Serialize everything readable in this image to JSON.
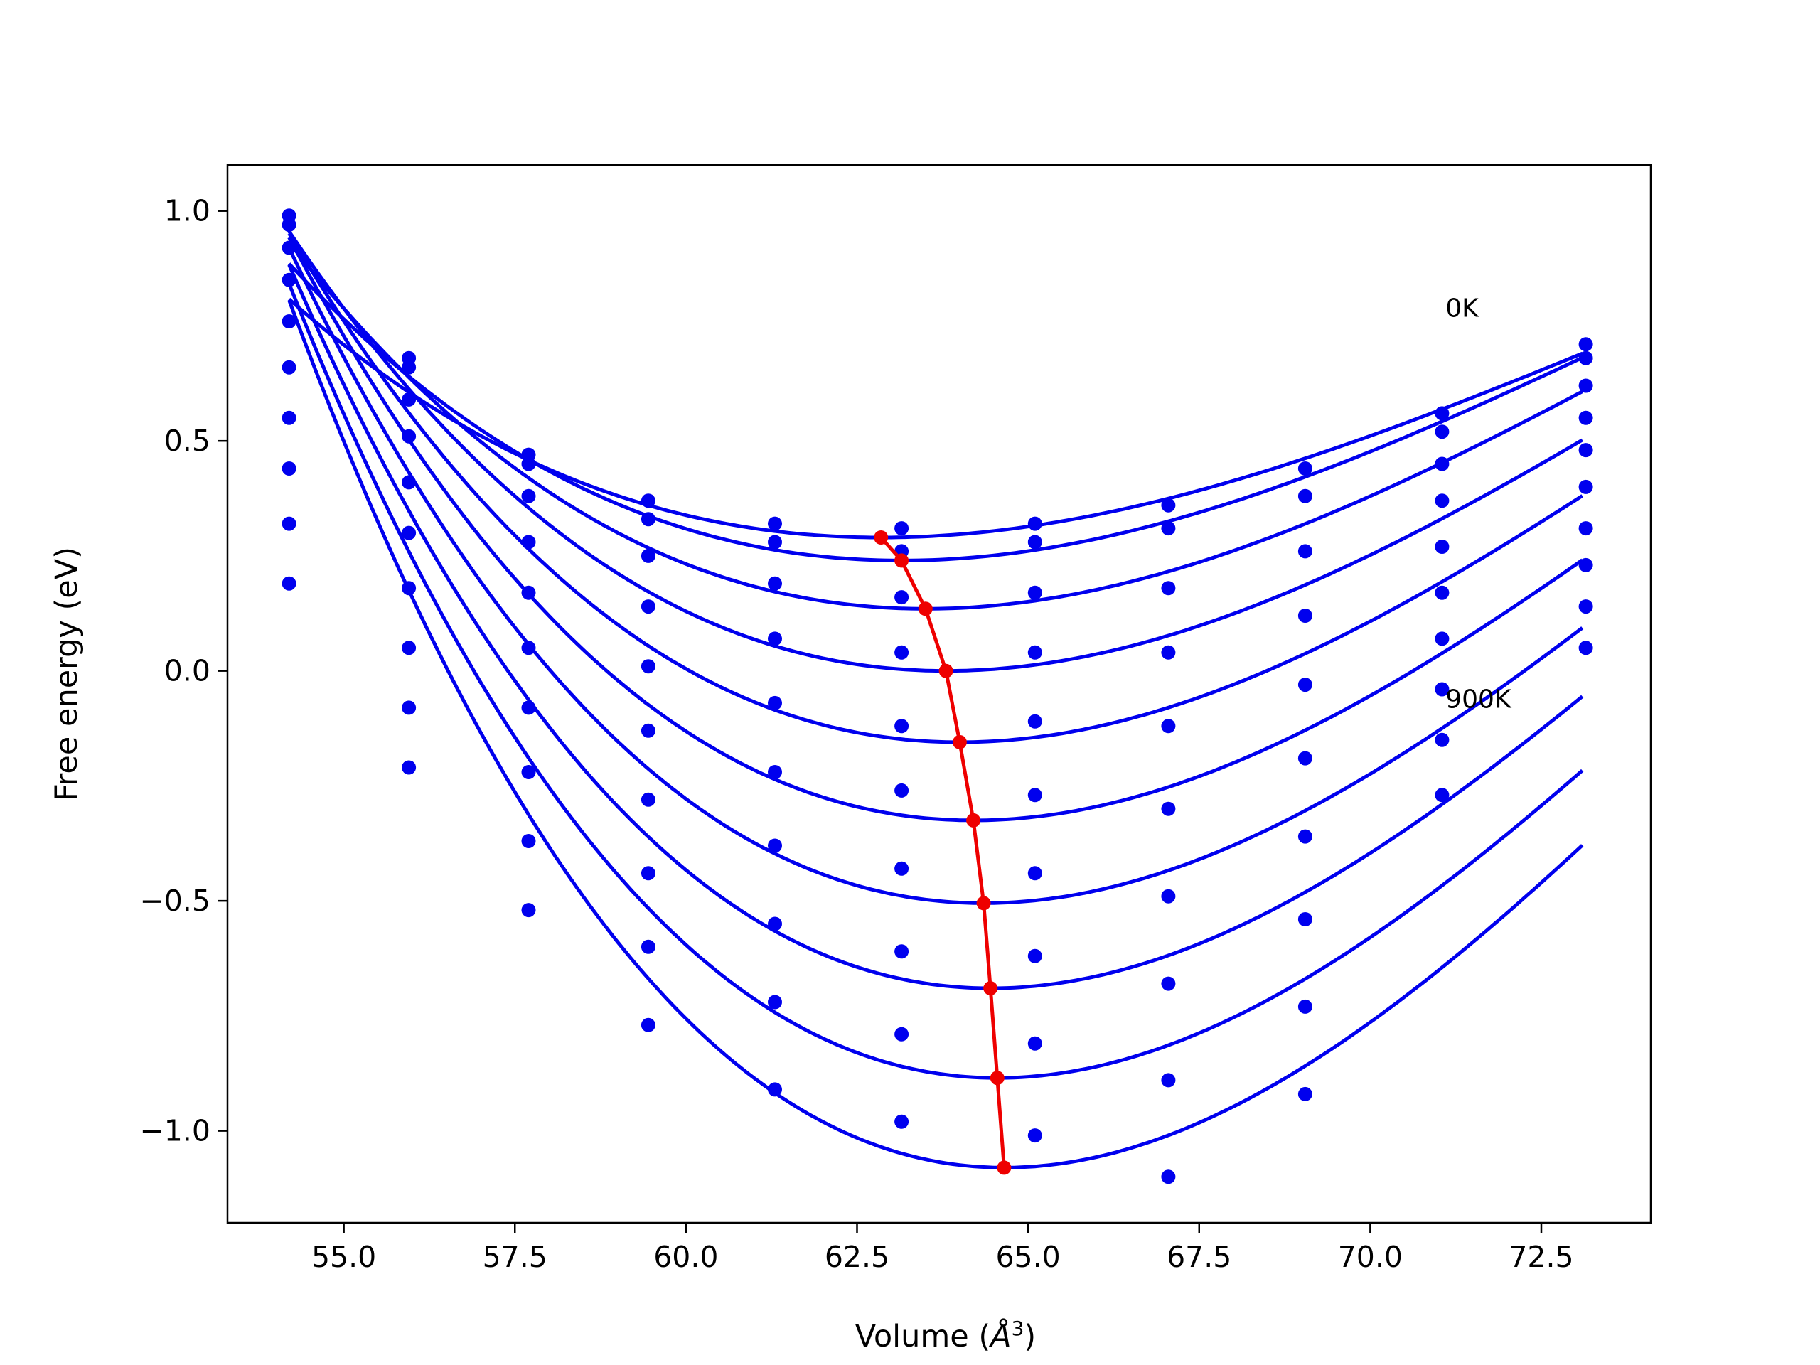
{
  "chart_data": {
    "type": "line",
    "title": "",
    "xlabel": "Volume (",
    "xlabel_symbol": "Å",
    "xlabel_exponent": "3",
    "xlabel_close": ")",
    "ylabel": "Free energy (eV)",
    "xlim": [
      53.3,
      74.1
    ],
    "ylim": [
      -1.2,
      1.1
    ],
    "grid": false,
    "legend": "none",
    "x_ticks": [
      55.0,
      57.5,
      60.0,
      62.5,
      65.0,
      67.5,
      70.0,
      72.5
    ],
    "x_tick_labels": [
      "55.0",
      "57.5",
      "60.0",
      "62.5",
      "65.0",
      "67.5",
      "70.0",
      "72.5"
    ],
    "y_ticks": [
      1.0,
      0.5,
      0.0,
      -0.5,
      -1.0
    ],
    "y_tick_labels": [
      "1.0",
      "0.5",
      "0.0",
      "−0.5",
      "−1.0"
    ],
    "colors": {
      "curves": "#0000ee",
      "minima": "#ee0000",
      "frame": "#000000"
    },
    "annotations": [
      {
        "text": "0K",
        "x": 71.1,
        "y": 0.77
      },
      {
        "text": "900K",
        "x": 71.1,
        "y": -0.08
      }
    ],
    "volumes": [
      54.2,
      55.95,
      57.7,
      59.45,
      61.3,
      63.15,
      65.1,
      67.05,
      69.05,
      71.05,
      73.15
    ],
    "series": [
      {
        "label": "0K",
        "values": [
          0.99,
          0.68,
          0.47,
          0.37,
          0.32,
          0.31,
          0.32,
          0.36,
          0.44,
          0.56,
          0.71
        ],
        "fit_min_v": 62.85,
        "fit_min_e": 0.29,
        "fit_range": [
          54.2,
          73.1
        ]
      },
      {
        "values": [
          0.97,
          0.66,
          0.45,
          0.33,
          0.28,
          0.26,
          0.28,
          0.31,
          0.38,
          0.52,
          0.68
        ],
        "fit_min_v": 63.15,
        "fit_min_e": 0.24,
        "fit_range": [
          54.2,
          73.1
        ]
      },
      {
        "values": [
          0.92,
          0.59,
          0.38,
          0.25,
          0.19,
          0.16,
          0.17,
          0.18,
          0.26,
          0.45,
          0.62
        ],
        "fit_min_v": 63.5,
        "fit_min_e": 0.135,
        "fit_range": [
          54.2,
          73.1
        ]
      },
      {
        "values": [
          0.85,
          0.51,
          0.28,
          0.14,
          0.07,
          0.04,
          0.04,
          0.04,
          0.12,
          0.37,
          0.55
        ],
        "fit_min_v": 63.8,
        "fit_min_e": 0.0,
        "fit_range": [
          54.2,
          73.1
        ]
      },
      {
        "values": [
          0.76,
          0.41,
          0.17,
          0.01,
          -0.07,
          -0.12,
          -0.11,
          -0.12,
          -0.03,
          0.27,
          0.48
        ],
        "fit_min_v": 64.0,
        "fit_min_e": -0.155,
        "fit_range": [
          54.2,
          73.1
        ]
      },
      {
        "values": [
          0.66,
          0.3,
          0.05,
          -0.13,
          -0.22,
          -0.26,
          -0.27,
          -0.3,
          -0.19,
          0.17,
          0.4
        ],
        "fit_min_v": 64.2,
        "fit_min_e": -0.325,
        "fit_range": [
          54.2,
          73.1
        ]
      },
      {
        "values": [
          0.55,
          0.18,
          -0.08,
          -0.28,
          -0.38,
          -0.43,
          -0.44,
          -0.49,
          -0.36,
          0.07,
          0.31
        ],
        "fit_min_v": 64.35,
        "fit_min_e": -0.505,
        "fit_range": [
          54.2,
          73.1
        ]
      },
      {
        "values": [
          0.44,
          0.05,
          -0.22,
          -0.44,
          -0.55,
          -0.61,
          -0.62,
          -0.68,
          -0.54,
          -0.04,
          0.23
        ],
        "fit_min_v": 64.45,
        "fit_min_e": -0.69,
        "fit_range": [
          54.2,
          73.1
        ]
      },
      {
        "values": [
          0.32,
          -0.08,
          -0.37,
          -0.6,
          -0.72,
          -0.79,
          -0.81,
          -0.89,
          -0.73,
          -0.15,
          0.14
        ],
        "fit_min_v": 64.55,
        "fit_min_e": -0.885,
        "fit_range": [
          54.2,
          73.1
        ]
      },
      {
        "label": "900K",
        "values": [
          0.19,
          -0.21,
          -0.52,
          -0.77,
          -0.91,
          -0.98,
          -1.01,
          -1.1,
          -0.92,
          -0.27,
          0.05
        ],
        "fit_min_v": 64.65,
        "fit_min_e": -1.08,
        "fit_range": [
          54.2,
          73.1
        ]
      }
    ],
    "minima_curve": {
      "x": [
        62.85,
        63.15,
        63.5,
        63.8,
        64.0,
        64.2,
        64.35,
        64.45,
        64.55,
        64.65
      ],
      "y": [
        0.29,
        0.24,
        0.135,
        0.0,
        -0.155,
        -0.325,
        -0.505,
        -0.69,
        -0.885,
        -1.08
      ]
    }
  }
}
